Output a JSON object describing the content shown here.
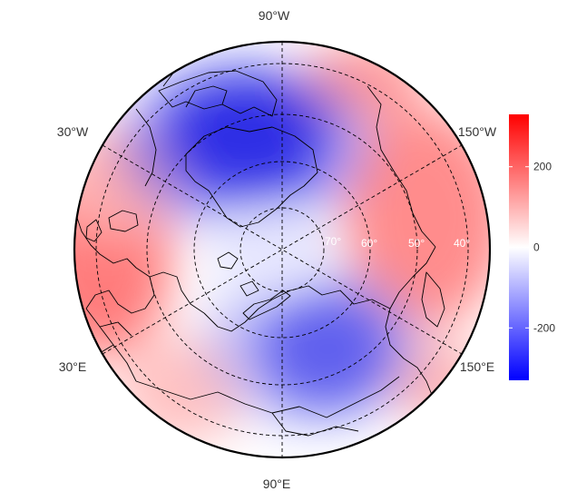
{
  "map": {
    "projection": "north-polar stereographic",
    "field_colors": {
      "negative": "#0000ff",
      "zero": "#ffffff",
      "positive": "#ff0000"
    },
    "longitude_labels": [
      {
        "id": "90w",
        "text": "90°W"
      },
      {
        "id": "30w",
        "text": "30°W"
      },
      {
        "id": "150w",
        "text": "150°W"
      },
      {
        "id": "30e",
        "text": "30°E"
      },
      {
        "id": "150e",
        "text": "150°E"
      },
      {
        "id": "90e",
        "text": "90°E"
      }
    ],
    "latitude_labels": [
      {
        "id": "lat1",
        "text": "70°"
      },
      {
        "id": "lat2",
        "text": "60°"
      },
      {
        "id": "lat3",
        "text": "50°"
      },
      {
        "id": "lat4",
        "text": "40°"
      }
    ],
    "graticule": "dashed",
    "coastlines": true,
    "country_borders": true
  },
  "colorbar": {
    "range": [
      -330,
      330
    ],
    "ticks": [
      {
        "value": 200,
        "label": "200"
      },
      {
        "value": 0,
        "label": "0"
      },
      {
        "value": -200,
        "label": "-200"
      }
    ],
    "colors": {
      "min": "#0000ff",
      "mid": "#ffffff",
      "max": "#ff0000"
    }
  }
}
